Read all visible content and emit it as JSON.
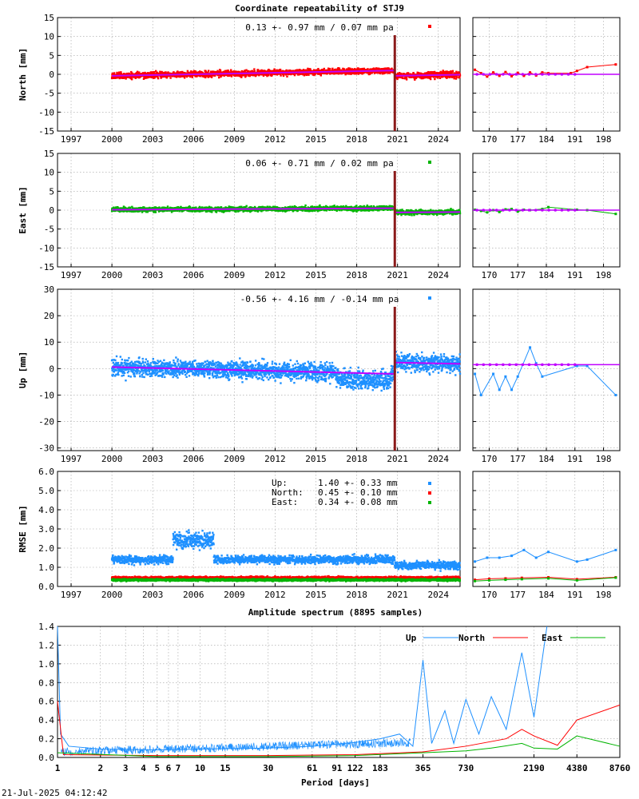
{
  "title": "Coordinate repeatability of STJ9",
  "timestamp": "21-Jul-2025 04:12:42",
  "colors": {
    "north": "#ff0000",
    "east": "#00b400",
    "up": "#1e90ff",
    "model": "#c000ff",
    "offset": "#8b1a1a"
  },
  "chart_data": [
    {
      "type": "scatter",
      "id": "north",
      "ylabel": "North [mm]",
      "annotation": "0.13 +- 0.97 mm /  0.07 mm pa",
      "ylim": [
        -15,
        15
      ],
      "yticks": [
        -15,
        -10,
        -5,
        0,
        5,
        10,
        15
      ],
      "xlim": [
        1996.0,
        2025.6
      ],
      "xticks": [
        1997,
        2000,
        2003,
        2006,
        2009,
        2012,
        2015,
        2018,
        2021,
        2024
      ],
      "data_start": 2000.0,
      "offset_epoch": 2020.8,
      "segments": [
        {
          "x": [
            2000.0,
            2020.8
          ],
          "y": [
            -0.4,
            1.0
          ]
        },
        {
          "x": [
            2020.8,
            2025.6
          ],
          "y": [
            -0.4,
            -0.1
          ]
        }
      ],
      "scatter_sd": 1.0,
      "zoom": {
        "xlim": [
          166,
          202
        ],
        "xticks": [
          170,
          177,
          184,
          191,
          198
        ],
        "model_y": 0.0,
        "points": [
          {
            "x": 166.5,
            "y": 1.2
          },
          {
            "x": 168,
            "y": 0.3
          },
          {
            "x": 169.5,
            "y": -0.6
          },
          {
            "x": 171,
            "y": 0.5
          },
          {
            "x": 172.5,
            "y": -0.4
          },
          {
            "x": 174,
            "y": 0.6
          },
          {
            "x": 175.5,
            "y": -0.5
          },
          {
            "x": 177,
            "y": 0.4
          },
          {
            "x": 178.5,
            "y": -0.4
          },
          {
            "x": 180,
            "y": 0.5
          },
          {
            "x": 181.5,
            "y": -0.3
          },
          {
            "x": 183,
            "y": 0.5
          },
          {
            "x": 184.5,
            "y": 0.3
          },
          {
            "x": 190,
            "y": 0.3
          },
          {
            "x": 191.5,
            "y": 0.9
          },
          {
            "x": 194,
            "y": 1.9
          },
          {
            "x": 201,
            "y": 2.6
          }
        ]
      }
    },
    {
      "type": "scatter",
      "id": "east",
      "ylabel": "East [mm]",
      "annotation": "0.06 +- 0.71 mm /  0.02 mm pa",
      "ylim": [
        -15,
        15
      ],
      "yticks": [
        -15,
        -10,
        -5,
        0,
        5,
        10,
        15
      ],
      "xlim": [
        1996.0,
        2025.6
      ],
      "xticks": [
        1997,
        2000,
        2003,
        2006,
        2009,
        2012,
        2015,
        2018,
        2021,
        2024
      ],
      "data_start": 2000.0,
      "offset_epoch": 2020.8,
      "segments": [
        {
          "x": [
            2000.0,
            2020.8
          ],
          "y": [
            0.1,
            0.5
          ]
        },
        {
          "x": [
            2020.8,
            2025.6
          ],
          "y": [
            -0.6,
            -0.5
          ]
        }
      ],
      "scatter_sd": 0.75,
      "zoom": {
        "xlim": [
          166,
          202
        ],
        "xticks": [
          170,
          177,
          184,
          191,
          198
        ],
        "model_y": 0.0,
        "points": [
          {
            "x": 166.5,
            "y": 0.1
          },
          {
            "x": 168,
            "y": -0.2
          },
          {
            "x": 169.5,
            "y": -0.6
          },
          {
            "x": 171,
            "y": 0.0
          },
          {
            "x": 172.5,
            "y": -0.5
          },
          {
            "x": 174,
            "y": 0.2
          },
          {
            "x": 175.5,
            "y": 0.3
          },
          {
            "x": 177,
            "y": -0.4
          },
          {
            "x": 178.5,
            "y": 0.1
          },
          {
            "x": 180,
            "y": 0.0
          },
          {
            "x": 183,
            "y": 0.3
          },
          {
            "x": 184.5,
            "y": 0.8
          },
          {
            "x": 191.5,
            "y": 0.1
          },
          {
            "x": 194,
            "y": 0.0
          },
          {
            "x": 201,
            "y": -1.0
          }
        ]
      }
    },
    {
      "type": "scatter",
      "id": "up",
      "ylabel": "Up [mm]",
      "annotation": "-0.56 +- 4.16 mm / -0.14 mm pa",
      "ylim": [
        -31,
        30
      ],
      "yticks": [
        -30,
        -20,
        -10,
        0,
        10,
        20,
        30
      ],
      "xlim": [
        1996.0,
        2025.6
      ],
      "xticks": [
        1997,
        2000,
        2003,
        2006,
        2009,
        2012,
        2015,
        2018,
        2021,
        2024
      ],
      "data_start": 2000.0,
      "offset_epoch": 2020.8,
      "segments": [
        {
          "x": [
            2000.0,
            2020.8
          ],
          "y": [
            0.6,
            -2.0
          ]
        },
        {
          "x": [
            2020.8,
            2025.6
          ],
          "y": [
            2.3,
            1.8
          ]
        }
      ],
      "scatter_sd": 4.2,
      "zoom": {
        "xlim": [
          166,
          202
        ],
        "xticks": [
          170,
          177,
          184,
          191,
          198
        ],
        "model_y": 1.5,
        "points": [
          {
            "x": 166.5,
            "y": -2.0
          },
          {
            "x": 168,
            "y": -10.0
          },
          {
            "x": 171,
            "y": -2.0
          },
          {
            "x": 172.5,
            "y": -8.0
          },
          {
            "x": 174,
            "y": -3.0
          },
          {
            "x": 175.5,
            "y": -8.0
          },
          {
            "x": 177,
            "y": -3.0
          },
          {
            "x": 180,
            "y": 8.0
          },
          {
            "x": 181.5,
            "y": 2.0
          },
          {
            "x": 183,
            "y": -3.0
          },
          {
            "x": 191.5,
            "y": 1.0
          },
          {
            "x": 194,
            "y": 1.0
          },
          {
            "x": 201,
            "y": -10.0
          }
        ]
      }
    },
    {
      "type": "scatter",
      "id": "rmse",
      "ylabel": "RMSE [mm]",
      "ylim": [
        0.0,
        6.0
      ],
      "yticks": [
        0.0,
        1.0,
        2.0,
        3.0,
        4.0,
        5.0,
        6.0
      ],
      "ytick_labels": [
        "0.0",
        "1.0",
        "2.0",
        "3.0",
        "4.0",
        "5.0",
        "6.0"
      ],
      "xlim": [
        1996.0,
        2025.6
      ],
      "xticks": [
        1997,
        2000,
        2003,
        2006,
        2009,
        2012,
        2015,
        2018,
        2021,
        2024
      ],
      "data_start": 2000.0,
      "legend": [
        {
          "name": "Up:",
          "text": "1.40 +- 0.33 mm",
          "series": "up"
        },
        {
          "name": "North:",
          "text": "0.45 +- 0.10 mm",
          "series": "north"
        },
        {
          "name": "East:",
          "text": "0.34 +- 0.08 mm",
          "series": "east"
        }
      ],
      "series": [
        {
          "name": "Up",
          "series": "up",
          "mean": 1.4,
          "sd": 0.33
        },
        {
          "name": "North",
          "series": "north",
          "mean": 0.45,
          "sd": 0.1
        },
        {
          "name": "East",
          "series": "east",
          "mean": 0.34,
          "sd": 0.08
        }
      ],
      "zoom": {
        "xlim": [
          166,
          202
        ],
        "xticks": [
          170,
          177,
          184,
          191,
          198
        ],
        "series": [
          {
            "series": "up",
            "points": [
              {
                "x": 166.5,
                "y": 1.3
              },
              {
                "x": 169.5,
                "y": 1.5
              },
              {
                "x": 172.5,
                "y": 1.5
              },
              {
                "x": 175.5,
                "y": 1.6
              },
              {
                "x": 178.5,
                "y": 1.9
              },
              {
                "x": 181.5,
                "y": 1.5
              },
              {
                "x": 184.5,
                "y": 1.8
              },
              {
                "x": 191.5,
                "y": 1.3
              },
              {
                "x": 194,
                "y": 1.4
              },
              {
                "x": 201,
                "y": 1.9
              }
            ]
          },
          {
            "series": "north",
            "points": [
              {
                "x": 166.5,
                "y": 0.35
              },
              {
                "x": 170,
                "y": 0.4
              },
              {
                "x": 174,
                "y": 0.42
              },
              {
                "x": 178,
                "y": 0.45
              },
              {
                "x": 184.5,
                "y": 0.48
              },
              {
                "x": 191.5,
                "y": 0.38
              },
              {
                "x": 201,
                "y": 0.48
              }
            ]
          },
          {
            "series": "east",
            "points": [
              {
                "x": 166.5,
                "y": 0.28
              },
              {
                "x": 170,
                "y": 0.32
              },
              {
                "x": 174,
                "y": 0.35
              },
              {
                "x": 178,
                "y": 0.38
              },
              {
                "x": 184.5,
                "y": 0.42
              },
              {
                "x": 191.5,
                "y": 0.32
              },
              {
                "x": 201,
                "y": 0.46
              }
            ]
          }
        ]
      }
    },
    {
      "type": "line",
      "id": "spectrum",
      "title": "Amplitude spectrum (8895 samples)",
      "xlabel": "Period [days]",
      "xscale": "log",
      "xlim": [
        1,
        8760
      ],
      "xticks": [
        1,
        2,
        3,
        4,
        5,
        6,
        7,
        10,
        15,
        30,
        61,
        91,
        122,
        183,
        365,
        730,
        2190,
        4380,
        8760
      ],
      "ylim": [
        0.0,
        1.4
      ],
      "yticks": [
        0.0,
        0.2,
        0.4,
        0.6,
        0.8,
        1.0,
        1.2,
        1.4
      ],
      "ytick_labels": [
        "0.0",
        "0.2",
        "0.4",
        "0.6",
        "0.8",
        "1.0",
        "1.2",
        "1.4"
      ],
      "legend": [
        "Up",
        "North",
        "East"
      ],
      "series": [
        {
          "name": "Up",
          "series": "up",
          "points": [
            {
              "x": 1.0,
              "y": 1.4
            },
            {
              "x": 1.05,
              "y": 0.25
            },
            {
              "x": 1.2,
              "y": 0.12
            },
            {
              "x": 2,
              "y": 0.09
            },
            {
              "x": 5,
              "y": 0.08
            },
            {
              "x": 10,
              "y": 0.09
            },
            {
              "x": 30,
              "y": 0.1
            },
            {
              "x": 61,
              "y": 0.12
            },
            {
              "x": 122,
              "y": 0.16
            },
            {
              "x": 183,
              "y": 0.2
            },
            {
              "x": 250,
              "y": 0.25
            },
            {
              "x": 310,
              "y": 0.12
            },
            {
              "x": 365,
              "y": 1.04
            },
            {
              "x": 420,
              "y": 0.15
            },
            {
              "x": 520,
              "y": 0.5
            },
            {
              "x": 600,
              "y": 0.15
            },
            {
              "x": 730,
              "y": 0.62
            },
            {
              "x": 900,
              "y": 0.25
            },
            {
              "x": 1100,
              "y": 0.65
            },
            {
              "x": 1400,
              "y": 0.3
            },
            {
              "x": 1800,
              "y": 1.12
            },
            {
              "x": 2190,
              "y": 0.43
            },
            {
              "x": 2700,
              "y": 1.4
            }
          ]
        },
        {
          "name": "North",
          "series": "north",
          "points": [
            {
              "x": 1.0,
              "y": 0.6
            },
            {
              "x": 1.1,
              "y": 0.03
            },
            {
              "x": 5,
              "y": 0.02
            },
            {
              "x": 30,
              "y": 0.02
            },
            {
              "x": 122,
              "y": 0.03
            },
            {
              "x": 365,
              "y": 0.06
            },
            {
              "x": 730,
              "y": 0.12
            },
            {
              "x": 1400,
              "y": 0.2
            },
            {
              "x": 1800,
              "y": 0.3
            },
            {
              "x": 2190,
              "y": 0.23
            },
            {
              "x": 3200,
              "y": 0.13
            },
            {
              "x": 4380,
              "y": 0.4
            },
            {
              "x": 8760,
              "y": 0.56
            }
          ]
        },
        {
          "name": "East",
          "series": "east",
          "points": [
            {
              "x": 1.0,
              "y": 0.05
            },
            {
              "x": 5,
              "y": 0.01
            },
            {
              "x": 30,
              "y": 0.01
            },
            {
              "x": 122,
              "y": 0.02
            },
            {
              "x": 365,
              "y": 0.05
            },
            {
              "x": 730,
              "y": 0.07
            },
            {
              "x": 1100,
              "y": 0.1
            },
            {
              "x": 1800,
              "y": 0.15
            },
            {
              "x": 2190,
              "y": 0.1
            },
            {
              "x": 3200,
              "y": 0.09
            },
            {
              "x": 4380,
              "y": 0.23
            },
            {
              "x": 8760,
              "y": 0.12
            }
          ]
        }
      ]
    }
  ]
}
